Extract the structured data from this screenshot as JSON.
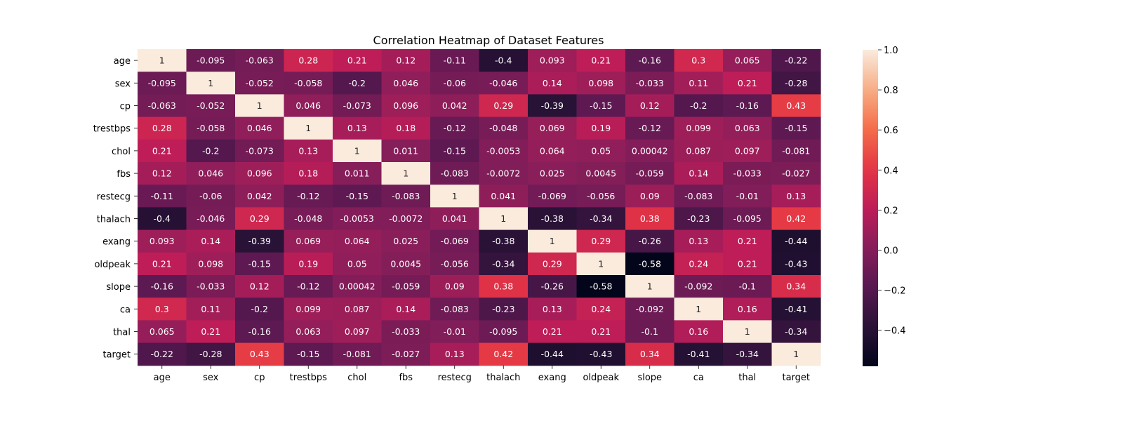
{
  "chart_data": {
    "type": "heatmap",
    "title": "Correlation Heatmap of Dataset Features",
    "xlabel": "",
    "ylabel": "",
    "labels": [
      "age",
      "sex",
      "cp",
      "trestbps",
      "chol",
      "fbs",
      "restecg",
      "thalach",
      "exang",
      "oldpeak",
      "slope",
      "ca",
      "thal",
      "target"
    ],
    "cell_text": [
      [
        "1",
        "-0.095",
        "-0.063",
        "0.28",
        "0.21",
        "0.12",
        "-0.11",
        "-0.4",
        "0.093",
        "0.21",
        "-0.16",
        "0.3",
        "0.065",
        "-0.22"
      ],
      [
        "-0.095",
        "1",
        "-0.052",
        "-0.058",
        "-0.2",
        "0.046",
        "-0.06",
        "-0.046",
        "0.14",
        "0.098",
        "-0.033",
        "0.11",
        "0.21",
        "-0.28"
      ],
      [
        "-0.063",
        "-0.052",
        "1",
        "0.046",
        "-0.073",
        "0.096",
        "0.042",
        "0.29",
        "-0.39",
        "-0.15",
        "0.12",
        "-0.2",
        "-0.16",
        "0.43"
      ],
      [
        "0.28",
        "-0.058",
        "0.046",
        "1",
        "0.13",
        "0.18",
        "-0.12",
        "-0.048",
        "0.069",
        "0.19",
        "-0.12",
        "0.099",
        "0.063",
        "-0.15"
      ],
      [
        "0.21",
        "-0.2",
        "-0.073",
        "0.13",
        "1",
        "0.011",
        "-0.15",
        "-0.0053",
        "0.064",
        "0.05",
        "0.00042",
        "0.087",
        "0.097",
        "-0.081"
      ],
      [
        "0.12",
        "0.046",
        "0.096",
        "0.18",
        "0.011",
        "1",
        "-0.083",
        "-0.0072",
        "0.025",
        "0.0045",
        "-0.059",
        "0.14",
        "-0.033",
        "-0.027"
      ],
      [
        "-0.11",
        "-0.06",
        "0.042",
        "-0.12",
        "-0.15",
        "-0.083",
        "1",
        "0.041",
        "-0.069",
        "-0.056",
        "0.09",
        "-0.083",
        "-0.01",
        "0.13"
      ],
      [
        "-0.4",
        "-0.046",
        "0.29",
        "-0.048",
        "-0.0053",
        "-0.0072",
        "0.041",
        "1",
        "-0.38",
        "-0.34",
        "0.38",
        "-0.23",
        "-0.095",
        "0.42"
      ],
      [
        "0.093",
        "0.14",
        "-0.39",
        "0.069",
        "0.064",
        "0.025",
        "-0.069",
        "-0.38",
        "1",
        "0.29",
        "-0.26",
        "0.13",
        "0.21",
        "-0.44"
      ],
      [
        "0.21",
        "0.098",
        "-0.15",
        "0.19",
        "0.05",
        "0.0045",
        "-0.056",
        "-0.34",
        "0.29",
        "1",
        "-0.58",
        "0.24",
        "0.21",
        "-0.43"
      ],
      [
        "-0.16",
        "-0.033",
        "0.12",
        "-0.12",
        "0.00042",
        "-0.059",
        "0.09",
        "0.38",
        "-0.26",
        "-0.58",
        "1",
        "-0.092",
        "-0.1",
        "0.34"
      ],
      [
        "0.3",
        "0.11",
        "-0.2",
        "0.099",
        "0.087",
        "0.14",
        "-0.083",
        "-0.23",
        "0.13",
        "0.24",
        "-0.092",
        "1",
        "0.16",
        "-0.41"
      ],
      [
        "0.065",
        "0.21",
        "-0.16",
        "0.063",
        "0.097",
        "-0.033",
        "-0.01",
        "-0.095",
        "0.21",
        "0.21",
        "-0.1",
        "0.16",
        "1",
        "-0.34"
      ],
      [
        "-0.22",
        "-0.28",
        "0.43",
        "-0.15",
        "-0.081",
        "-0.027",
        "0.13",
        "0.42",
        "-0.44",
        "-0.43",
        "0.34",
        "-0.41",
        "-0.34",
        "1"
      ]
    ],
    "colorbar": {
      "min": -0.58,
      "max": 1.0,
      "ticks": [
        -0.4,
        -0.2,
        0.0,
        0.2,
        0.4,
        0.6,
        0.8,
        1.0
      ],
      "tick_labels": [
        "−0.4",
        "−0.2",
        "0.0",
        "0.2",
        "0.4",
        "0.6",
        "0.8",
        "1.0"
      ],
      "colormap": "rocket"
    },
    "grid": false,
    "legend": "colorbar-right"
  }
}
